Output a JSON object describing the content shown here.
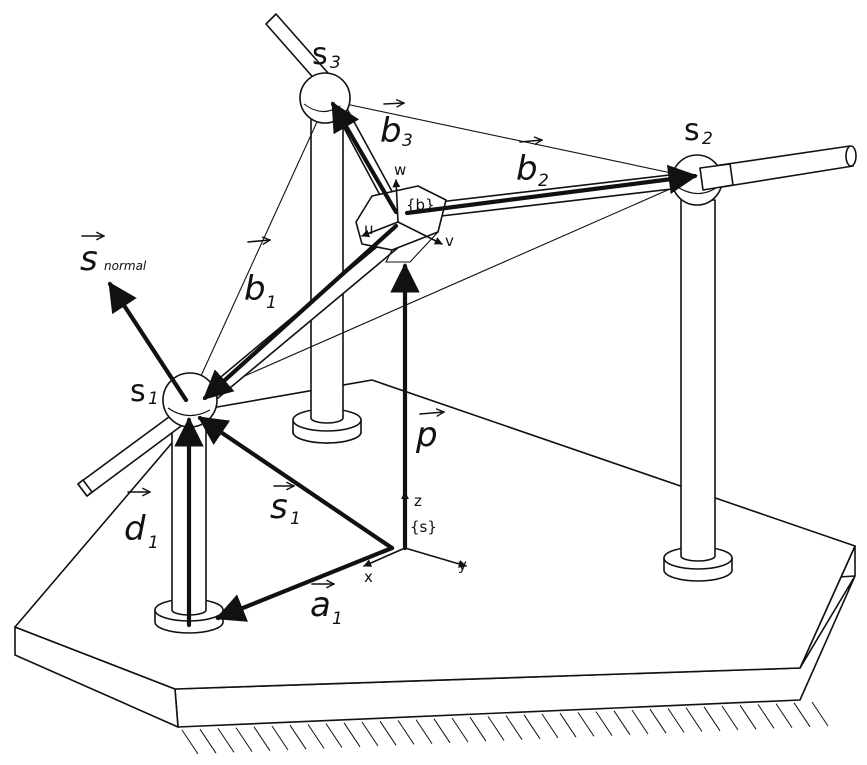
{
  "labels": {
    "s_normal_main": "s",
    "s_normal_sub": "normal",
    "s1_main": "s",
    "s1_sub": "1",
    "s2_main": "s",
    "s2_sub": "2",
    "s3_main": "s",
    "s3_sub": "3",
    "b1_main": "b",
    "b1_sub": "1",
    "b2_main": "b",
    "b2_sub": "2",
    "b3_main": "b",
    "b3_sub": "3",
    "d1_main": "d",
    "d1_sub": "1",
    "a1_main": "a",
    "a1_sub": "1",
    "vec_s1_main": "s",
    "vec_s1_sub": "1",
    "p_main": "p",
    "frame_b": "{b}",
    "frame_s": "{s}",
    "axis_u": "u",
    "axis_v": "v",
    "axis_w": "w",
    "axis_x": "x",
    "axis_y": "y",
    "axis_z": "z"
  },
  "colors": {
    "ink": "#111111",
    "background": "#ffffff"
  }
}
